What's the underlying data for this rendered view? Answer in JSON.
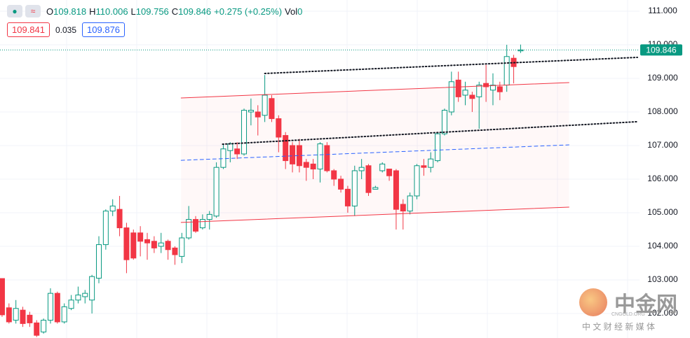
{
  "header": {
    "items": [
      {
        "label": "O",
        "value": "109.818"
      },
      {
        "label": "H",
        "value": "110.006"
      },
      {
        "label": "L",
        "value": "109.756"
      },
      {
        "label": "C",
        "value": "109.846"
      }
    ],
    "change": "+0.275 (+0.25%)",
    "volume": {
      "label": "Vol",
      "value": "0"
    },
    "bid": "109.841",
    "spread": "0.035",
    "ask": "109.876"
  },
  "watermark": {
    "title": "中金网",
    "site": "CNGOLD.ORG",
    "slogan": "中 文 财 经 新 媒 体"
  },
  "chart_data": {
    "type": "candlestick",
    "up_color": "#089981",
    "down_color": "#f23645",
    "xlim": [
      -0.3,
      92.2
    ],
    "ylim": [
      101.27,
      111.333
    ],
    "yticks": [
      {
        "value": 102,
        "label": "102.000"
      },
      {
        "value": 103,
        "label": "103.000"
      },
      {
        "value": 104,
        "label": "104.000"
      },
      {
        "value": 105,
        "label": "105.000"
      },
      {
        "value": 106,
        "label": "106.000"
      },
      {
        "value": 107,
        "label": "107.000"
      },
      {
        "value": 108,
        "label": "108.000"
      },
      {
        "value": 109,
        "label": "109.000"
      },
      {
        "value": 110,
        "label": "110.000"
      },
      {
        "value": 111,
        "label": "111.000"
      }
    ],
    "last_price": {
      "value": 109.846,
      "label": "109.846"
    },
    "open": [
      103.04,
      102.17,
      101.8,
      102.1,
      101.95,
      101.72,
      101.45,
      101.8,
      102.6,
      101.75,
      102.15,
      102.4,
      102.5,
      102.4,
      103.05,
      104.05,
      105.05,
      105.1,
      104.55,
      104.4,
      104.4,
      104.2,
      104.15,
      104.0,
      104.15,
      103.95,
      103.7,
      104.25,
      104.8,
      104.55,
      104.8,
      104.9,
      106.35,
      106.85,
      106.9,
      106.75,
      108.0,
      108.0,
      107.9,
      108.4,
      107.8,
      107.3,
      107.0,
      107.0,
      106.5,
      106.45,
      106.3,
      107.0,
      106.25,
      106.0,
      105.7,
      105.2,
      106.25,
      106.4,
      105.7,
      106.25,
      106.3,
      106.25,
      105.25,
      105.05,
      105.5,
      106.4,
      106.35,
      106.55,
      107.35,
      108.0,
      108.95,
      108.5,
      108.5,
      108.45,
      108.85,
      108.65,
      108.75,
      108.8,
      109.6,
      109.818
    ],
    "high": [
      103.04,
      102.3,
      102.4,
      102.2,
      102.05,
      101.8,
      101.85,
      102.75,
      102.65,
      102.3,
      102.55,
      102.8,
      102.7,
      103.15,
      104.3,
      105.1,
      105.4,
      105.5,
      104.7,
      104.5,
      104.6,
      104.4,
      104.3,
      104.4,
      104.2,
      104.0,
      104.4,
      105.2,
      104.9,
      104.95,
      105.05,
      106.5,
      107.05,
      107.1,
      107.1,
      108.1,
      108.4,
      108.2,
      109.1,
      108.5,
      107.9,
      107.4,
      107.1,
      107.2,
      106.6,
      106.6,
      107.1,
      107.1,
      106.3,
      106.1,
      105.8,
      106.4,
      106.6,
      106.45,
      105.8,
      106.5,
      106.3,
      106.3,
      105.4,
      105.6,
      106.45,
      106.6,
      106.8,
      107.4,
      108.1,
      109.2,
      109.2,
      108.9,
      108.6,
      108.9,
      109.4,
      109.15,
      108.9,
      110.0,
      109.7,
      110.006
    ],
    "low": [
      101.9,
      101.7,
      101.7,
      101.6,
      101.6,
      101.3,
      101.4,
      101.7,
      101.7,
      101.7,
      102.1,
      102.3,
      102.3,
      102.0,
      102.9,
      103.9,
      104.9,
      104.3,
      103.2,
      103.6,
      103.7,
      103.6,
      103.8,
      103.8,
      103.6,
      103.45,
      103.5,
      104.2,
      104.4,
      104.5,
      104.5,
      104.85,
      106.3,
      106.5,
      106.6,
      106.7,
      107.6,
      107.3,
      107.7,
      107.7,
      106.8,
      106.3,
      106.2,
      106.2,
      105.95,
      106.0,
      105.9,
      106.2,
      105.8,
      105.6,
      105.0,
      104.9,
      106.0,
      105.5,
      105.7,
      106.2,
      105.95,
      104.5,
      104.5,
      104.95,
      105.4,
      106.1,
      106.2,
      106.5,
      107.3,
      107.9,
      108.3,
      108.2,
      108.0,
      107.5,
      108.3,
      108.2,
      108.35,
      108.6,
      108.85,
      109.756
    ],
    "close": [
      101.96,
      101.75,
      102.15,
      101.7,
      101.72,
      101.35,
      101.8,
      102.6,
      101.75,
      102.2,
      102.4,
      102.55,
      102.6,
      103.1,
      104.05,
      105.05,
      105.2,
      104.55,
      103.6,
      103.65,
      104.15,
      104.1,
      103.95,
      104.1,
      103.9,
      103.75,
      104.25,
      104.8,
      104.45,
      104.8,
      104.95,
      106.35,
      106.9,
      107.05,
      106.75,
      108.05,
      108.05,
      107.85,
      108.5,
      107.8,
      107.25,
      106.55,
      106.45,
      106.4,
      106.35,
      106.3,
      107.05,
      106.25,
      106.0,
      105.7,
      105.2,
      106.25,
      106.35,
      105.6,
      105.75,
      106.45,
      106.1,
      105.1,
      105.05,
      105.5,
      106.4,
      106.35,
      106.6,
      107.35,
      108.05,
      108.9,
      108.45,
      108.65,
      108.4,
      108.8,
      108.75,
      108.8,
      108.6,
      109.65,
      109.35,
      109.846
    ],
    "drawings": [
      {
        "style": "dotted",
        "color": "#131722",
        "x": [
          38.0,
          91.9
        ],
        "y": [
          109.146,
          109.625
        ]
      },
      {
        "style": "dotted",
        "color": "#131722",
        "x": [
          31.9,
          91.9
        ],
        "y": [
          107.04,
          107.71
        ]
      },
      {
        "style": "solid",
        "color": "#f23645",
        "x": [
          25.9,
          82.0
        ],
        "y": [
          108.417,
          108.875
        ]
      },
      {
        "style": "solid",
        "color": "#f23645",
        "x": [
          25.9,
          82.0
        ],
        "y": [
          104.71,
          105.167
        ]
      },
      {
        "style": "dashed",
        "color": "#2962ff",
        "x": [
          25.9,
          82.0
        ],
        "y": [
          106.56,
          107.02
        ]
      }
    ]
  }
}
